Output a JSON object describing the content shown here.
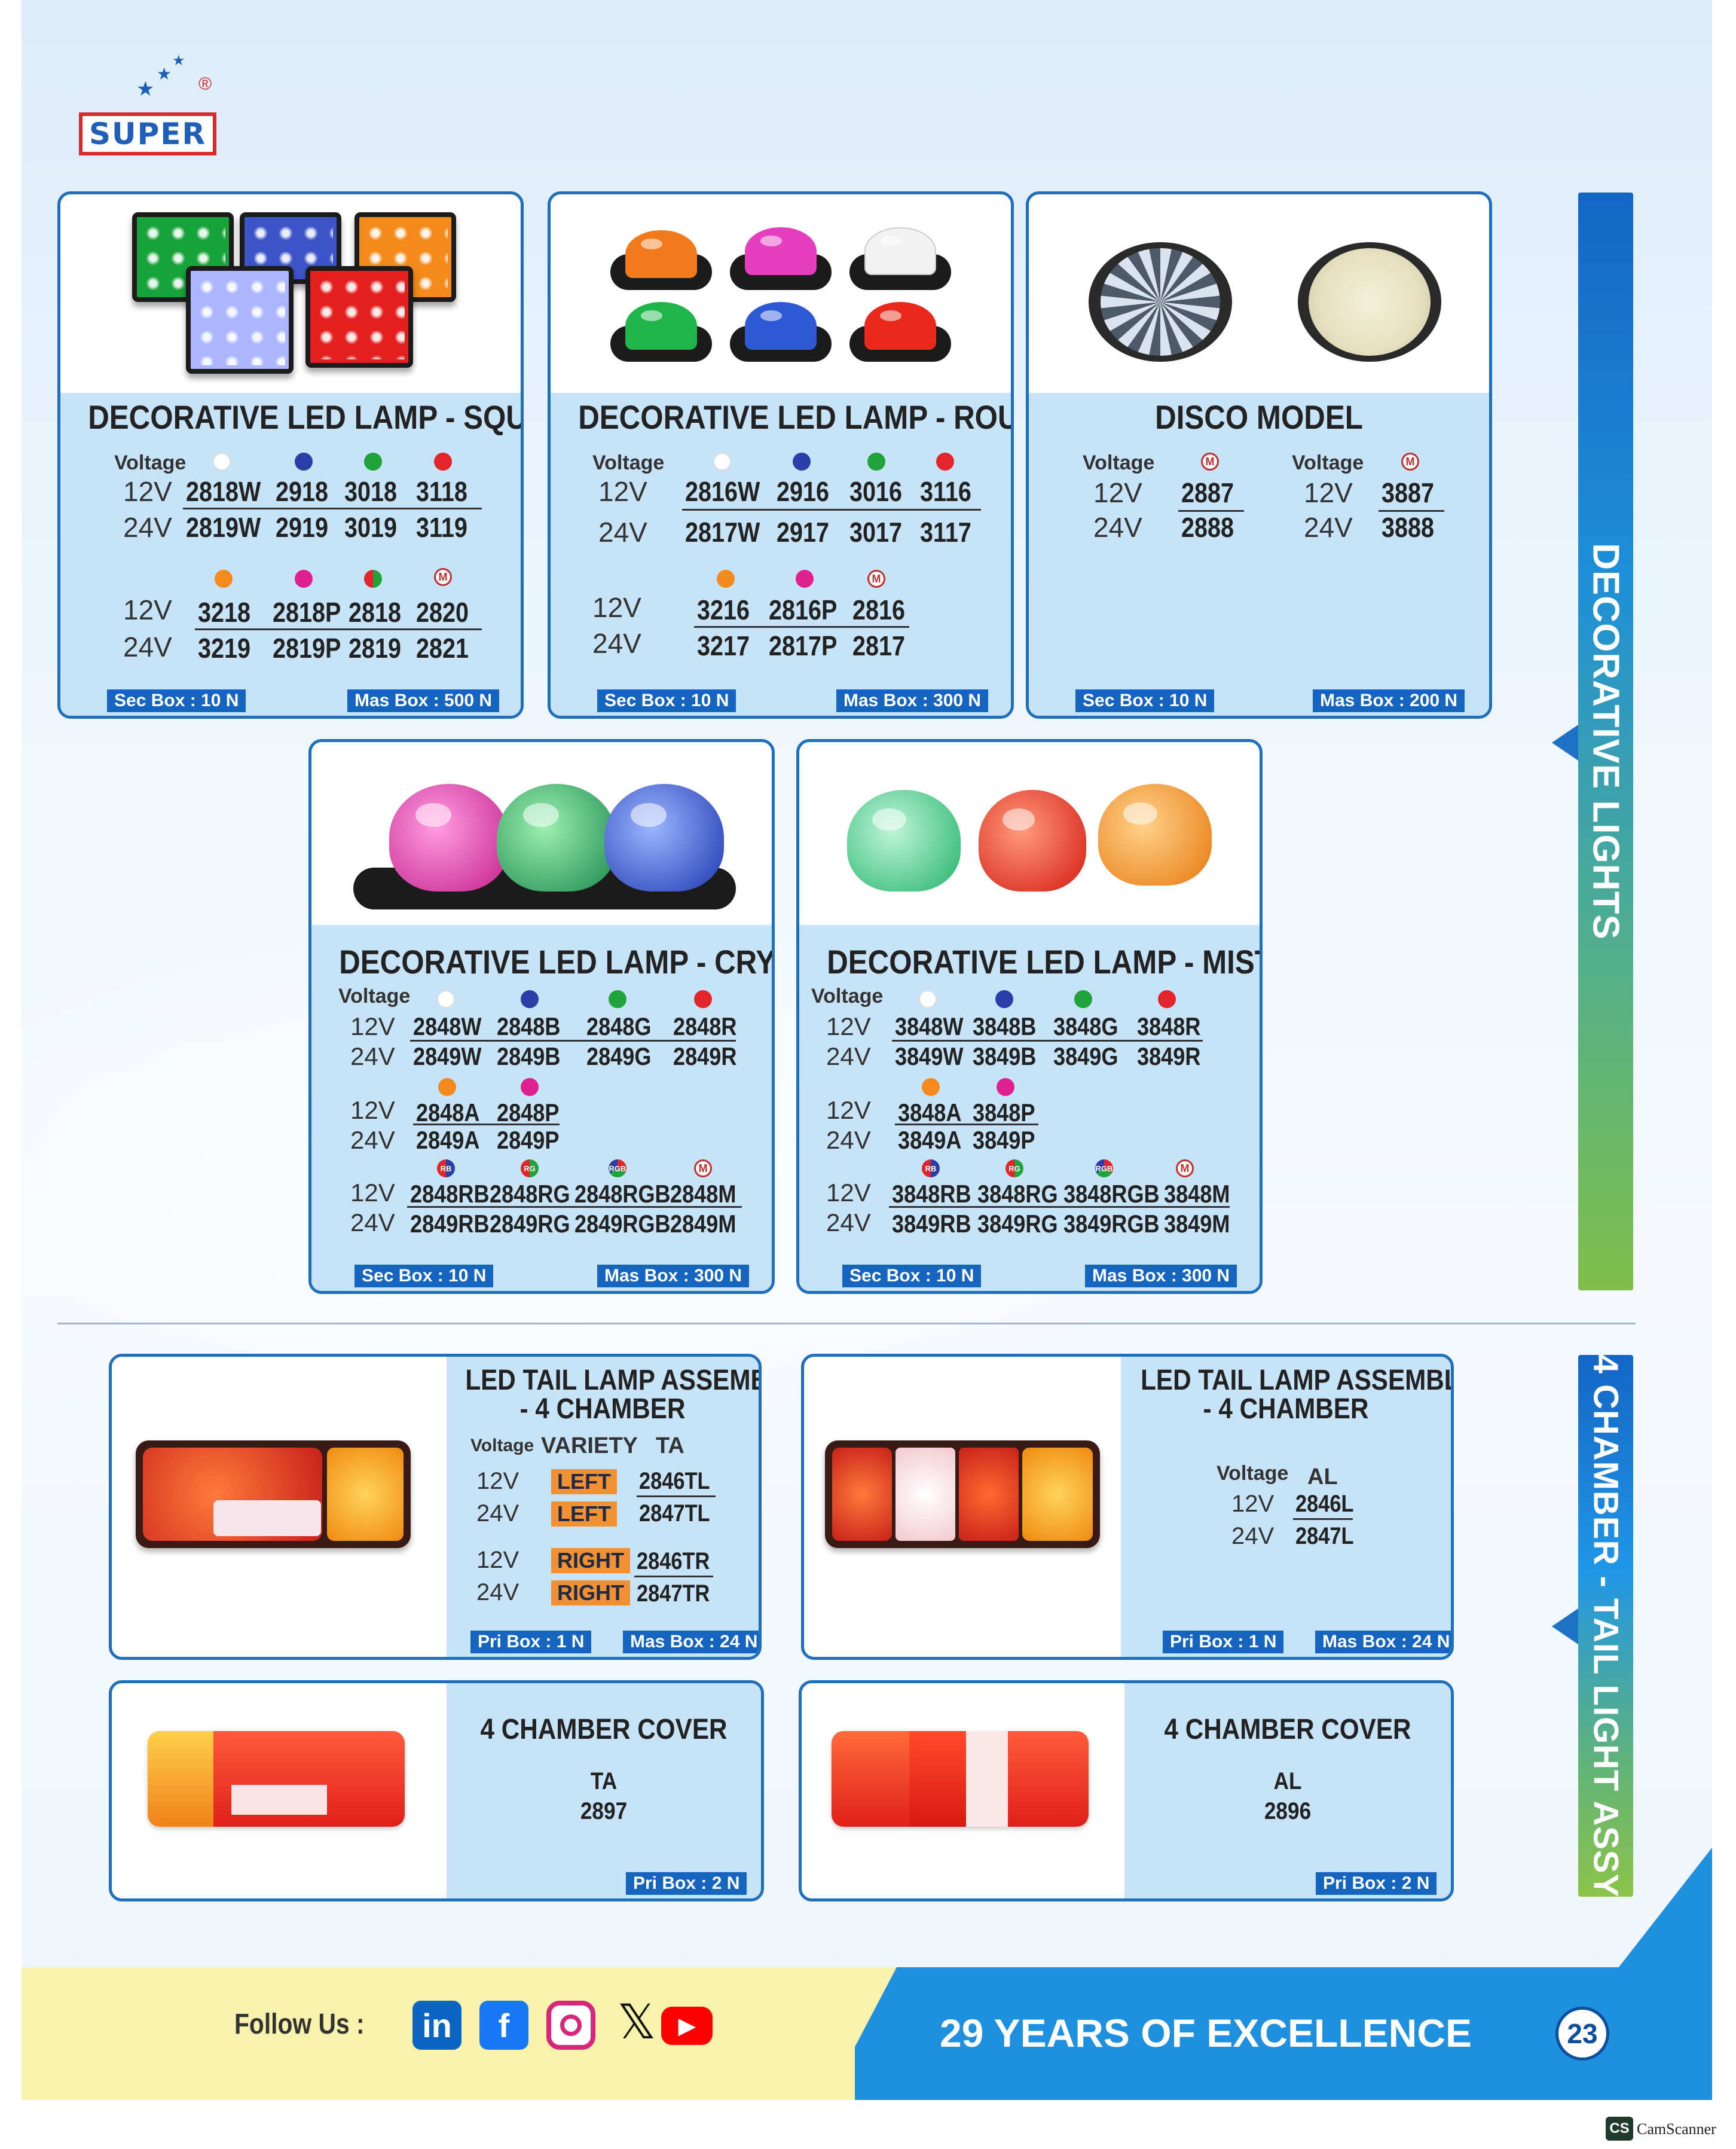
{
  "brand": {
    "name": "SUPER"
  },
  "cards": {
    "square": {
      "title": "DECORATIVE LED LAMP - SQUARE",
      "voltage_label": "Voltage",
      "row1": {
        "v12": "12V",
        "v24": "24V",
        "c12": [
          "2818W",
          "2918",
          "3018",
          "3118"
        ],
        "c24": [
          "2819W",
          "2919",
          "3019",
          "3119"
        ]
      },
      "row2": {
        "v12": "12V",
        "v24": "24V",
        "c12": [
          "3218",
          "2818P",
          "2818",
          "2820"
        ],
        "c24": [
          "3219",
          "2819P",
          "2819",
          "2821"
        ]
      },
      "sec_box": "Sec Box : 10 N",
      "mas_box": "Mas Box : 500 N"
    },
    "round": {
      "title": "DECORATIVE LED LAMP - ROUND",
      "voltage_label": "Voltage",
      "row1": {
        "v12": "12V",
        "v24": "24V",
        "c12": [
          "2816W",
          "2916",
          "3016",
          "3116"
        ],
        "c24": [
          "2817W",
          "2917",
          "3017",
          "3117"
        ]
      },
      "row2": {
        "v12": "12V",
        "v24": "24V",
        "c12": [
          "3216",
          "2816P",
          "2816"
        ],
        "c24": [
          "3217",
          "2817P",
          "2817"
        ]
      },
      "sec_box": "Sec Box : 10 N",
      "mas_box": "Mas Box : 300 N"
    },
    "disco": {
      "title": "DISCO MODEL",
      "voltage_label": "Voltage",
      "left": {
        "v12": "12V",
        "v24": "24V",
        "c12": "2887",
        "c24": "2888"
      },
      "right": {
        "v12": "12V",
        "v24": "24V",
        "c12": "3887",
        "c24": "3888"
      },
      "sec_box": "Sec Box : 10 N",
      "mas_box": "Mas Box : 200 N"
    },
    "crystal": {
      "title": "DECORATIVE LED LAMP - CRYSTAL",
      "voltage_label": "Voltage",
      "row1": {
        "v12": "12V",
        "v24": "24V",
        "c12": [
          "2848W",
          "2848B",
          "2848G",
          "2848R"
        ],
        "c24": [
          "2849W",
          "2849B",
          "2849G",
          "2849R"
        ]
      },
      "row2": {
        "v12": "12V",
        "v24": "24V",
        "c12": [
          "2848A",
          "2848P"
        ],
        "c24": [
          "2849A",
          "2849P"
        ]
      },
      "row3": {
        "v12": "12V",
        "v24": "24V",
        "c12": [
          "2848RB",
          "2848RG",
          "2848RGB",
          "2848M"
        ],
        "c24": [
          "2849RB",
          "2849RG",
          "2849RGB",
          "2849M"
        ]
      },
      "sec_box": "Sec Box : 10 N",
      "mas_box": "Mas Box : 300 N"
    },
    "mist": {
      "title": "DECORATIVE LED LAMP - MIST",
      "voltage_label": "Voltage",
      "row1": {
        "v12": "12V",
        "v24": "24V",
        "c12": [
          "3848W",
          "3848B",
          "3848G",
          "3848R"
        ],
        "c24": [
          "3849W",
          "3849B",
          "3849G",
          "3849R"
        ]
      },
      "row2": {
        "v12": "12V",
        "v24": "24V",
        "c12": [
          "3848A",
          "3848P"
        ],
        "c24": [
          "3849A",
          "3849P"
        ]
      },
      "row3": {
        "v12": "12V",
        "v24": "24V",
        "c12": [
          "3848RB",
          "3848RG",
          "3848RGB",
          "3848M"
        ],
        "c24": [
          "3849RB",
          "3849RG",
          "3849RGB",
          "3849M"
        ]
      },
      "sec_box": "Sec Box : 10 N",
      "mas_box": "Mas Box : 300 N"
    },
    "tail_ta": {
      "title1": "LED TAIL LAMP ASSEMBLY",
      "title2": "- 4 CHAMBER",
      "voltage_label": "Voltage",
      "variety_label": "VARIETY",
      "ta_label": "TA",
      "rows": [
        {
          "v": "12V",
          "variety": "LEFT",
          "code": "2846TL"
        },
        {
          "v": "24V",
          "variety": "LEFT",
          "code": "2847TL"
        },
        {
          "v": "12V",
          "variety": "RIGHT",
          "code": "2846TR"
        },
        {
          "v": "24V",
          "variety": "RIGHT",
          "code": "2847TR"
        }
      ],
      "pri_box": "Pri Box : 1 N",
      "mas_box": "Mas Box : 24 N"
    },
    "tail_al": {
      "title1": "LED TAIL LAMP ASSEMBLY",
      "title2": "- 4 CHAMBER",
      "voltage_label": "Voltage",
      "al_label": "AL",
      "v12": "12V",
      "v24": "24V",
      "c12": "2846L",
      "c24": "2847L",
      "pri_box": "Pri Box : 1 N",
      "mas_box": "Mas Box : 24 N"
    },
    "cover_ta": {
      "title": "4 CHAMBER COVER",
      "variant": "TA",
      "code": "2897",
      "pri_box": "Pri Box : 2 N"
    },
    "cover_al": {
      "title": "4 CHAMBER COVER",
      "variant": "AL",
      "code": "2896",
      "pri_box": "Pri Box : 2 N"
    }
  },
  "side_labels": {
    "top": "DECORATIVE LIGHTS",
    "bottom": "4 CHAMBER - TAIL LIGHT ASSY"
  },
  "footer": {
    "follow": "Follow Us :",
    "tagline": "29 YEARS OF EXCELLENCE",
    "page_number": "23"
  },
  "watermark": {
    "badge": "CS",
    "text": "CamScanner"
  },
  "colors": {
    "white": "#ffffff",
    "blue": "#2b3ea8",
    "green": "#1fa33a",
    "red": "#e0262b",
    "amber": "#f28a1e",
    "pink": "#e0208f",
    "accent": "#1565c0"
  },
  "icons": [
    "linkedin-icon",
    "facebook-icon",
    "instagram-icon",
    "x-icon",
    "youtube-icon"
  ]
}
